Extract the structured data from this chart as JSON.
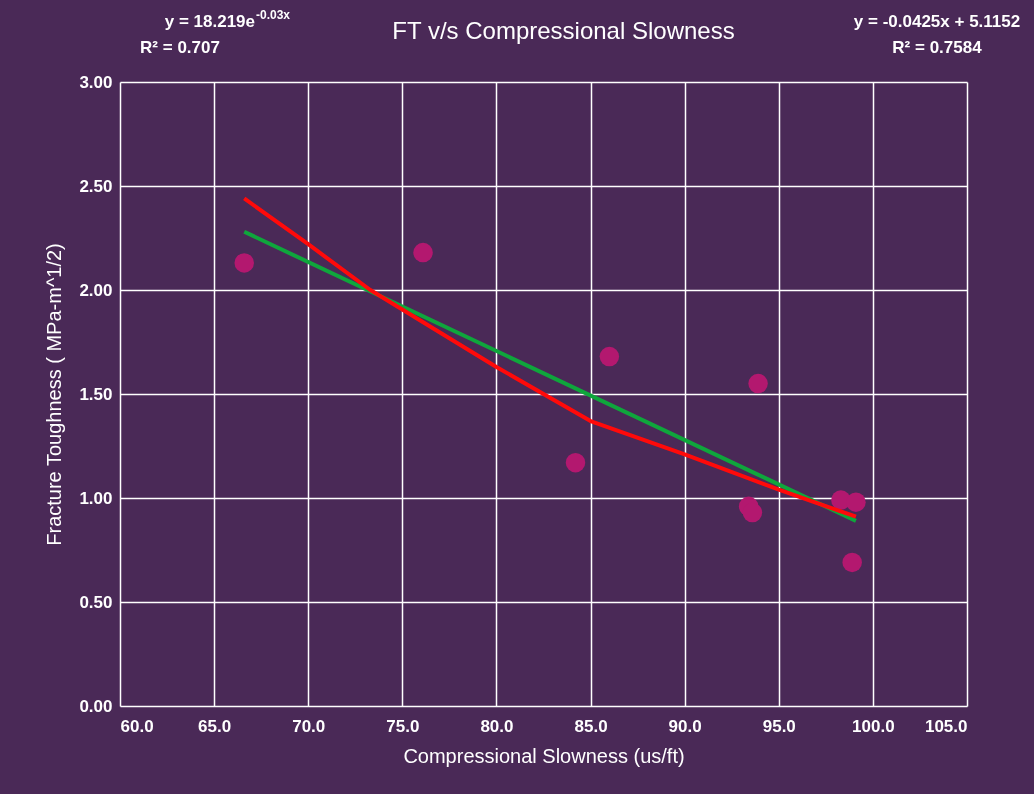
{
  "chart_data": {
    "type": "scatter",
    "title": "FT v/s Compressional Slowness",
    "xlabel": "Compressional Slowness (us/ft)",
    "ylabel": "Fracture Toughness ( MPa-m^1/2)",
    "x": [
      66.6,
      76.1,
      86.0,
      84.2,
      93.9,
      93.4,
      93.6,
      98.3,
      99.1,
      98.9
    ],
    "series": [
      {
        "marker": "circle",
        "color": "#b3186f",
        "values": [
          2.13,
          2.18,
          1.68,
          1.17,
          1.55,
          0.96,
          0.93,
          0.99,
          0.98,
          0.69
        ]
      },
      {
        "type": "line",
        "color": "#0fa63c",
        "x": [
          66.6,
          99.1
        ],
        "values": [
          2.28,
          0.89
        ]
      },
      {
        "type": "line",
        "color": "#ff0a0a",
        "x": [
          66.6,
          70.0,
          73.3,
          80.0,
          85.0,
          90.0,
          95.0,
          99.1
        ],
        "values": [
          2.44,
          2.22,
          2.0,
          1.63,
          1.37,
          1.21,
          1.04,
          0.91
        ]
      }
    ],
    "xlim": [
      60,
      105
    ],
    "xticks": [
      {
        "value": 60,
        "label": "60.0"
      },
      {
        "value": 65,
        "label": "65.0"
      },
      {
        "value": 70,
        "label": "70.0"
      },
      {
        "value": 75,
        "label": "75.0"
      },
      {
        "value": 80,
        "label": "80.0"
      },
      {
        "value": 85,
        "label": "85.0"
      },
      {
        "value": 90,
        "label": "90.0"
      },
      {
        "value": 95,
        "label": "95.0"
      },
      {
        "value": 100,
        "label": "100.0"
      },
      {
        "value": 105,
        "label": "105.0"
      }
    ],
    "ylim": [
      0,
      3
    ],
    "yticks": [
      {
        "value": 0,
        "label": "0.00"
      },
      {
        "value": 0.5,
        "label": "0.50"
      },
      {
        "value": 1,
        "label": "1.00"
      },
      {
        "value": 1.5,
        "label": "1.50"
      },
      {
        "value": 2,
        "label": "2.00"
      },
      {
        "value": 2.5,
        "label": "2.50"
      },
      {
        "value": 3,
        "label": "3.00"
      }
    ],
    "annotations": [
      "y = 18.219e$^{-0.03x}$",
      "R² = 0.707",
      "y = -0.0425x + 5.1152",
      "R² = 0.7584"
    ],
    "grid": true,
    "legend": false
  }
}
